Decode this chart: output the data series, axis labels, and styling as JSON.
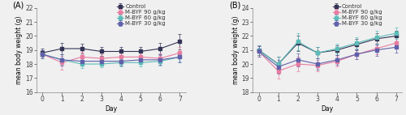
{
  "days": [
    0,
    1,
    2,
    3,
    4,
    5,
    6,
    7
  ],
  "panel_A": {
    "title": "(A)",
    "ylabel": "mean body weight (g)",
    "xlabel": "Day",
    "ylim": [
      16,
      22
    ],
    "yticks": [
      16,
      17,
      18,
      19,
      20,
      21,
      22
    ],
    "series": {
      "Control": {
        "mean": [
          18.8,
          19.1,
          19.1,
          18.9,
          18.9,
          18.9,
          19.1,
          19.6
        ],
        "err": [
          0.3,
          0.4,
          0.35,
          0.3,
          0.3,
          0.3,
          0.4,
          0.55
        ],
        "color": "#333355",
        "marker": "s"
      },
      "M-BYF 90 g/kg": {
        "mean": [
          18.7,
          18.1,
          18.5,
          18.4,
          18.5,
          18.5,
          18.4,
          18.8
        ],
        "err": [
          0.3,
          0.5,
          0.35,
          0.3,
          0.3,
          0.3,
          0.35,
          0.4
        ],
        "color": "#e87ca0",
        "marker": "s"
      },
      "M-BYF 60 g/kg": {
        "mean": [
          18.7,
          18.3,
          18.0,
          18.0,
          18.1,
          18.1,
          18.2,
          18.5
        ],
        "err": [
          0.3,
          0.4,
          0.3,
          0.25,
          0.25,
          0.25,
          0.3,
          0.35
        ],
        "color": "#5bbcb8",
        "marker": "s"
      },
      "M-BYF 30 g/kg": {
        "mean": [
          18.7,
          18.3,
          18.2,
          18.2,
          18.2,
          18.3,
          18.3,
          18.5
        ],
        "err": [
          0.3,
          0.4,
          0.3,
          0.3,
          0.3,
          0.3,
          0.35,
          0.4
        ],
        "color": "#6060aa",
        "marker": "s"
      }
    }
  },
  "panel_B": {
    "title": "(B)",
    "ylabel": "mean body weight (g)",
    "xlabel": "Day",
    "ylim": [
      18,
      24
    ],
    "yticks": [
      18,
      19,
      20,
      21,
      22,
      23,
      24
    ],
    "series": {
      "Control": {
        "mean": [
          21.0,
          20.0,
          21.5,
          20.8,
          21.0,
          21.4,
          21.8,
          22.0
        ],
        "err": [
          0.35,
          0.5,
          0.55,
          0.4,
          0.35,
          0.4,
          0.4,
          0.4
        ],
        "color": "#333355",
        "marker": "s"
      },
      "M-BYF 90 g/kg": {
        "mean": [
          20.9,
          19.5,
          20.0,
          19.9,
          20.2,
          20.7,
          21.1,
          21.5
        ],
        "err": [
          0.35,
          0.55,
          0.5,
          0.4,
          0.35,
          0.35,
          0.4,
          0.4
        ],
        "color": "#e87ca0",
        "marker": "s"
      },
      "M-BYF 60 g/kg": {
        "mean": [
          21.0,
          20.0,
          21.6,
          20.8,
          21.1,
          21.5,
          21.9,
          22.2
        ],
        "err": [
          0.35,
          0.5,
          0.6,
          0.4,
          0.35,
          0.4,
          0.45,
          0.4
        ],
        "color": "#5bbcb8",
        "marker": "s"
      },
      "M-BYF 30 g/kg": {
        "mean": [
          20.9,
          19.8,
          20.3,
          20.0,
          20.3,
          20.7,
          21.0,
          21.2
        ],
        "err": [
          0.35,
          0.5,
          0.45,
          0.4,
          0.35,
          0.35,
          0.4,
          0.4
        ],
        "color": "#6060aa",
        "marker": "s"
      }
    }
  },
  "legend_labels": [
    "Control",
    "M-BYF 90 g/kg",
    "M-BYF 60 g/kg",
    "M-BYF 30 g/kg"
  ],
  "bg_color": "#f0f0f0",
  "fontsize": 5.5,
  "marker_size": 2.5,
  "linewidth": 0.8,
  "capsize": 1.5
}
